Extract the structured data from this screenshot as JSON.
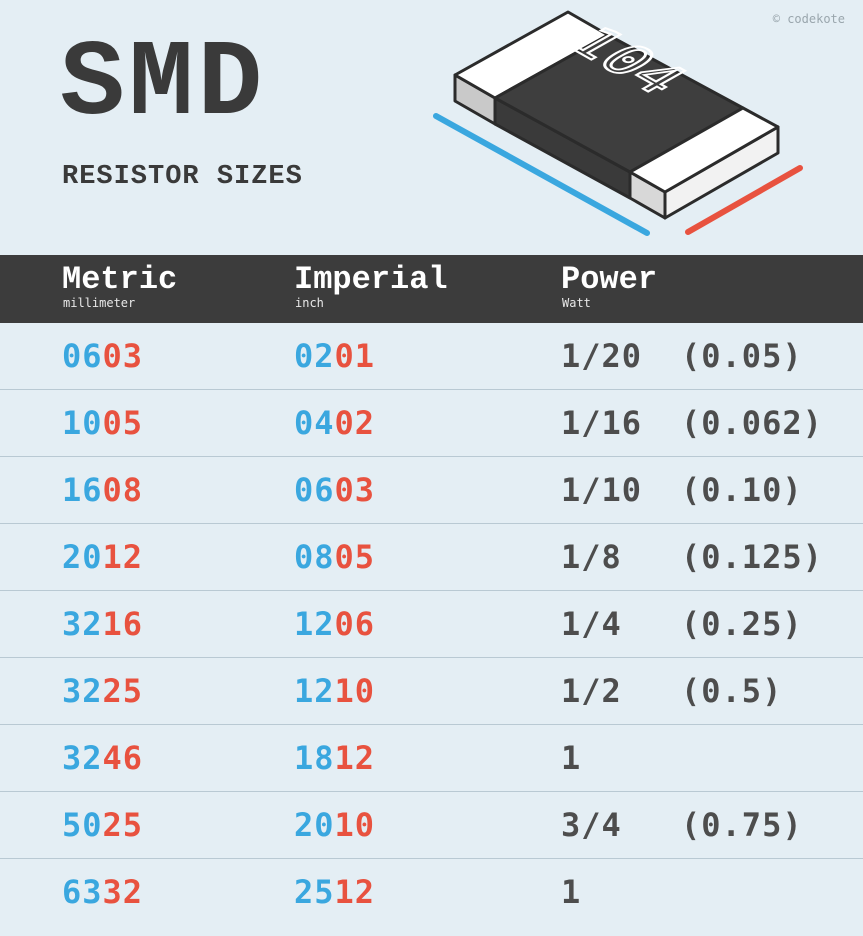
{
  "header": {
    "title": "SMD",
    "subtitle": "RESISTOR SIZES",
    "credit": "© codekote",
    "chip_marking": "104"
  },
  "colors": {
    "background": "#e4eef4",
    "header_bar": "#3c3c3c",
    "length_blue": "#3aa7df",
    "width_red": "#e8523f",
    "text_dark": "#4d4d4d"
  },
  "columns": [
    {
      "name": "Metric",
      "unit": "millimeter"
    },
    {
      "name": "Imperial",
      "unit": "inch"
    },
    {
      "name": "Power",
      "unit": "Watt"
    }
  ],
  "rows": [
    {
      "metric_a": "06",
      "metric_b": "03",
      "imperial_a": "02",
      "imperial_b": "01",
      "power": "1/20",
      "watts": "(0.05)"
    },
    {
      "metric_a": "10",
      "metric_b": "05",
      "imperial_a": "04",
      "imperial_b": "02",
      "power": "1/16",
      "watts": "(0.062)"
    },
    {
      "metric_a": "16",
      "metric_b": "08",
      "imperial_a": "06",
      "imperial_b": "03",
      "power": "1/10",
      "watts": "(0.10)"
    },
    {
      "metric_a": "20",
      "metric_b": "12",
      "imperial_a": "08",
      "imperial_b": "05",
      "power": "1/8",
      "watts": "(0.125)"
    },
    {
      "metric_a": "32",
      "metric_b": "16",
      "imperial_a": "12",
      "imperial_b": "06",
      "power": "1/4",
      "watts": "(0.25)"
    },
    {
      "metric_a": "32",
      "metric_b": "25",
      "imperial_a": "12",
      "imperial_b": "10",
      "power": "1/2",
      "watts": "(0.5)"
    },
    {
      "metric_a": "32",
      "metric_b": "46",
      "imperial_a": "18",
      "imperial_b": "12",
      "power": "1",
      "watts": ""
    },
    {
      "metric_a": "50",
      "metric_b": "25",
      "imperial_a": "20",
      "imperial_b": "10",
      "power": "3/4",
      "watts": "(0.75)"
    },
    {
      "metric_a": "63",
      "metric_b": "32",
      "imperial_a": "25",
      "imperial_b": "12",
      "power": "1",
      "watts": ""
    }
  ]
}
